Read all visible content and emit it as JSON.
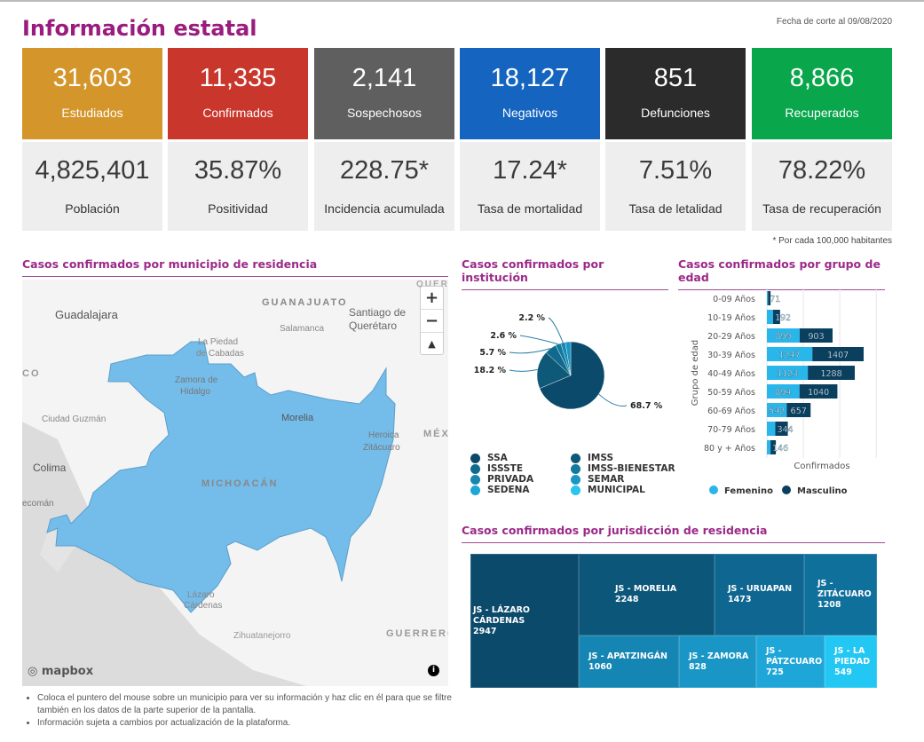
{
  "header": {
    "title": "Información estatal",
    "date": "Fecha de corte al 09/08/2020"
  },
  "cards": [
    {
      "value": "31,603",
      "label": "Estudiados",
      "color": "#d4952a"
    },
    {
      "value": "11,335",
      "label": "Confirmados",
      "color": "#c9372c"
    },
    {
      "value": "2,141",
      "label": "Sospechosos",
      "color": "#5f5f5f"
    },
    {
      "value": "18,127",
      "label": "Negativos",
      "color": "#1565c0"
    },
    {
      "value": "851",
      "label": "Defunciones",
      "color": "#2b2b2b"
    },
    {
      "value": "8,866",
      "label": "Recuperados",
      "color": "#0aa64b"
    }
  ],
  "stats": [
    {
      "value": "4,825,401",
      "label": "Población"
    },
    {
      "value": "35.87%",
      "label": "Positividad"
    },
    {
      "value": "228.75*",
      "label": "Incidencia acumulada"
    },
    {
      "value": "17.24*",
      "label": "Tasa de mortalidad"
    },
    {
      "value": "7.51%",
      "label": "Tasa de letalidad"
    },
    {
      "value": "78.22%",
      "label": "Tasa de recuperación"
    }
  ],
  "footnote": "* Por cada 100,000 habitantes",
  "map": {
    "title": "Casos confirmados por municipio de residencia",
    "labels": [
      "GUANAJUATO",
      "Guadalajara",
      "Santiago de",
      "Querétaro",
      "Salamanca",
      "La Piedad",
      "de Cabadas",
      "Zamora de",
      "Hidalgo",
      "Ciudad Guzmán",
      "Morelia",
      "Heroica",
      "Zitácuaro",
      "MÉXI",
      "Colima",
      "MICHOACÁN",
      "ecomán",
      "Lázaro",
      "Cárdenas",
      "Zihuatanejorro",
      "GUERRERO",
      "QUERE",
      "CO"
    ],
    "zoom_in": "+",
    "zoom_out": "−",
    "compass": "▲",
    "attribution": "mapbox",
    "info": "i",
    "fill": "#74bce9",
    "notes": [
      "Coloca el puntero del mouse sobre un municipio para ver su información y haz clic en él para que se filtre también en los datos de la parte superior de la pantalla.",
      "Información sujeta a cambios por actualización de la plataforma."
    ]
  },
  "chart_data": [
    {
      "type": "pie",
      "title": "Casos confirmados por institución",
      "slices": [
        {
          "label": "68.7 %",
          "value": 68.7
        },
        {
          "label": "18.2 %",
          "value": 18.2
        },
        {
          "label": "5.7 %",
          "value": 5.7
        },
        {
          "label": "2.6 %",
          "value": 2.6
        },
        {
          "label": "2.2 %",
          "value": 2.2
        }
      ],
      "legend": [
        {
          "name": "SSA",
          "color": "#0b4a6b"
        },
        {
          "name": "IMSS",
          "color": "#0e5878"
        },
        {
          "name": "ISSSTE",
          "color": "#116a8e"
        },
        {
          "name": "IMSS-BIENESTAR",
          "color": "#13799f"
        },
        {
          "name": "PRIVADA",
          "color": "#1587b1"
        },
        {
          "name": "SEMAR",
          "color": "#1997c4"
        },
        {
          "name": "SEDENA",
          "color": "#1ea6d6"
        },
        {
          "name": "MUNICIPAL",
          "color": "#2bc3ef"
        }
      ]
    },
    {
      "type": "bar",
      "orientation": "horizontal",
      "stacked": true,
      "title": "Casos confirmados por grupo de edad",
      "ylabel": "Grupo de edad",
      "xlabel": "Confirmados",
      "categories": [
        "0-09 Años",
        "10-19 Años",
        "20-29 Años",
        "30-39 Años",
        "40-49 Años",
        "50-59 Años",
        "60-69 Años",
        "70-79 Años",
        "80 y + Años"
      ],
      "series": [
        {
          "name": "Femenino",
          "color": "#29b6ea",
          "values": [
            30,
            170,
            899,
            1247,
            1123,
            894,
            542,
            230,
            100
          ]
        },
        {
          "name": "Masculino",
          "color": "#0b3f5e",
          "values": [
            71,
            192,
            903,
            1407,
            1288,
            1040,
            657,
            344,
            146
          ]
        }
      ],
      "grid": true
    },
    {
      "type": "treemap",
      "title": "Casos confirmados por jurisdicción de residencia",
      "items": [
        {
          "name": "JS - LÁZARO CÁRDENAS",
          "value": 2947,
          "color": "#0b4a6b"
        },
        {
          "name": "JS - MORELIA",
          "value": 2248,
          "color": "#0c5679"
        },
        {
          "name": "JS - URUAPAN",
          "value": 1473,
          "color": "#0f6690"
        },
        {
          "name": "JS - ZITÁCUARO",
          "value": 1208,
          "color": "#10709c"
        },
        {
          "name": "JS - APATZINGÁN",
          "value": 1060,
          "color": "#1585b3"
        },
        {
          "name": "JS - ZAMORA",
          "value": 828,
          "color": "#1a96c6"
        },
        {
          "name": "JS - PÁTZCUARO",
          "value": 725,
          "color": "#1ea6d8"
        },
        {
          "name": "JS - LA PIEDAD",
          "value": 549,
          "color": "#22c7f4"
        }
      ]
    }
  ]
}
